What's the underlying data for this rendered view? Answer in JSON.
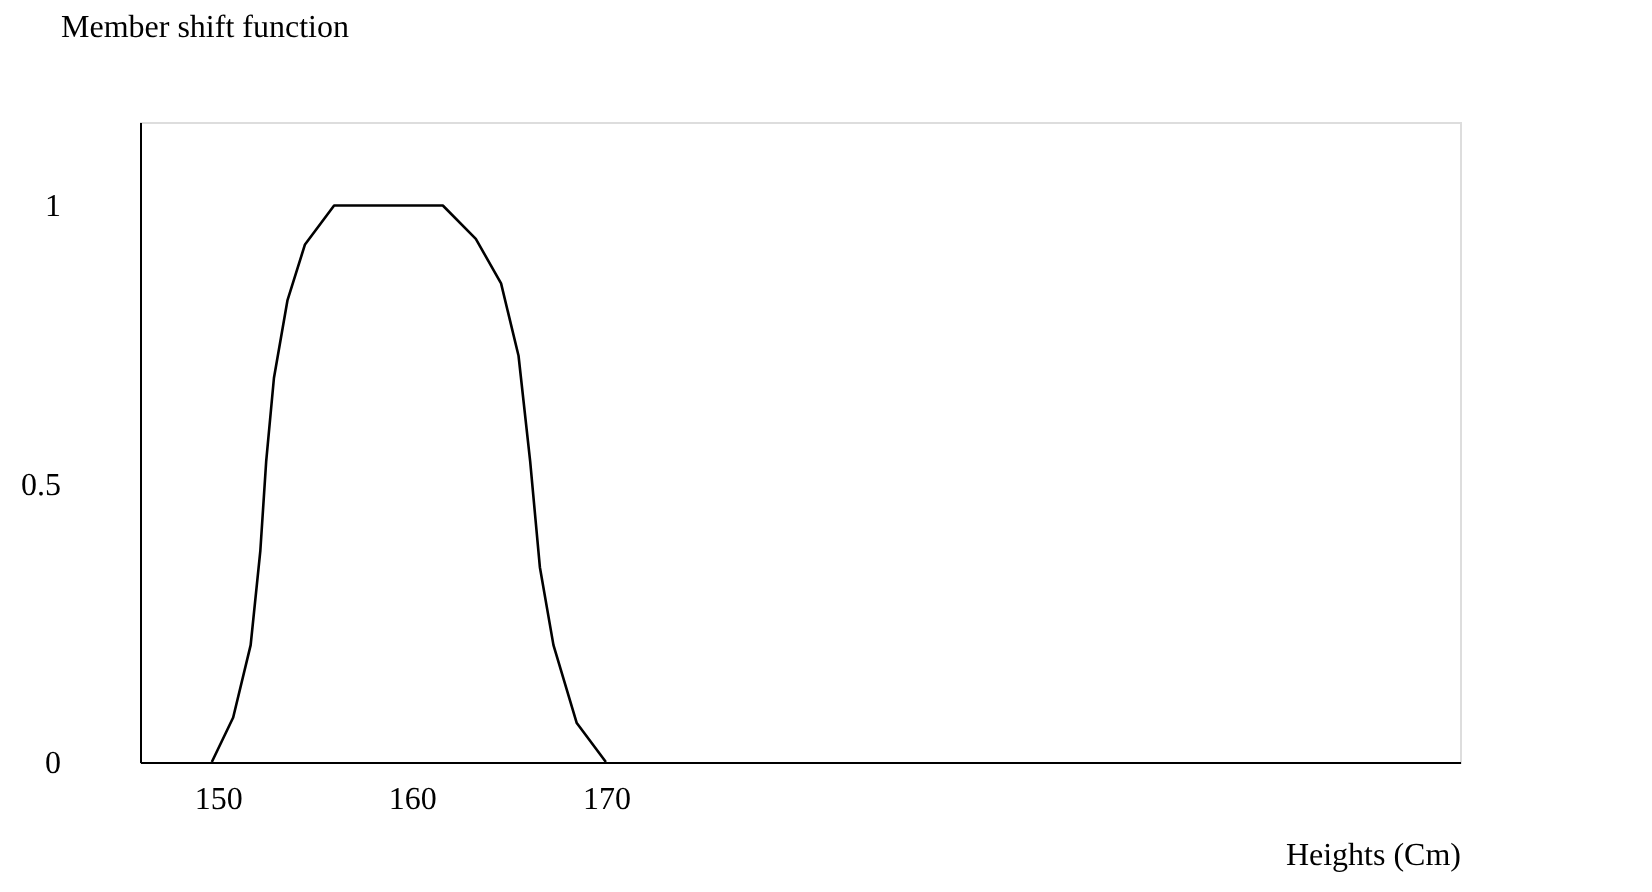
{
  "chart_data": {
    "type": "line",
    "xlabel": "Heights (Cm)",
    "ylabel": "Member shift function",
    "x": [
      149.7,
      150.8,
      151.7,
      152.2,
      152.5,
      152.9,
      153.6,
      154.5,
      156.0,
      161.6,
      163.3,
      164.6,
      165.5,
      166.1,
      166.6,
      167.3,
      168.5,
      170.0
    ],
    "series": [
      {
        "color": "#000000",
        "values": [
          0,
          0.08,
          0.21,
          0.38,
          0.54,
          0.69,
          0.83,
          0.93,
          1,
          1,
          0.94,
          0.86,
          0.73,
          0.54,
          0.35,
          0.21,
          0.07,
          0
        ]
      }
    ],
    "xlim": [
      146,
      214
    ],
    "ylim": [
      0,
      1.15
    ],
    "xticks": [
      150,
      160,
      170
    ],
    "yticks": [
      0,
      0.5,
      1
    ],
    "grid": false,
    "legend": false,
    "marker": "none",
    "line_style": "solid"
  }
}
